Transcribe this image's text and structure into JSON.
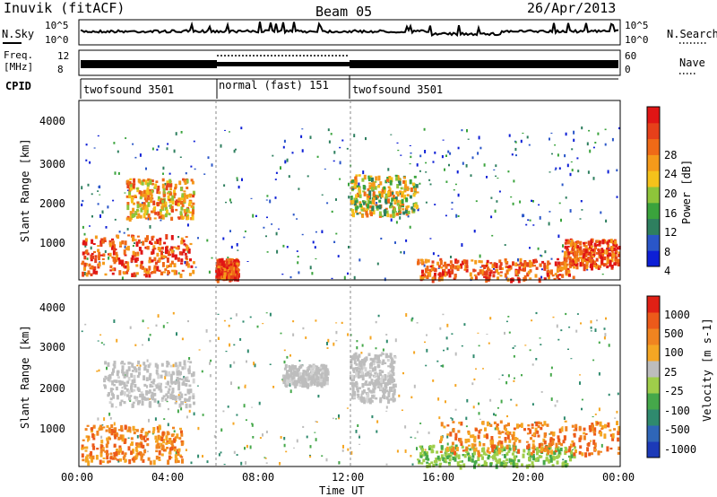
{
  "header": {
    "station": "Inuvik (fitACF)",
    "beam": "Beam 05",
    "date": "26/Apr/2013"
  },
  "status_panels": {
    "nsky": {
      "label": "N.Sky",
      "ticks": [
        "10^5",
        "10^0"
      ]
    },
    "nsearch": {
      "label": "N.Search",
      "ticks": [
        "10^5",
        "10^0"
      ]
    },
    "freq": {
      "label_line1": "Freq.",
      "label_line2": "[MHz]",
      "ticks": [
        "12",
        "8"
      ]
    },
    "nave": {
      "label": "Nave",
      "ticks": [
        "60",
        "0"
      ]
    },
    "cpid": {
      "label": "CPID",
      "segments": [
        {
          "name": "twofsound 3501",
          "start_h": 0,
          "end_h": 6
        },
        {
          "name": "normal (fast) 151",
          "start_h": 6,
          "end_h": 12
        },
        {
          "name": "twofsound 3501",
          "start_h": 12,
          "end_h": 24
        }
      ]
    }
  },
  "chart_data": [
    {
      "type": "heatmap",
      "title": "Power",
      "xlabel": "",
      "ylabel": "Slant Range [km]",
      "ylim": [
        200,
        4600
      ],
      "xlim_h": [
        0,
        24
      ],
      "yticks": [
        "4000",
        "3000",
        "2000",
        "1000"
      ],
      "colorbar": {
        "label": "Power [dB]",
        "ticks": [
          "28",
          "24",
          "20",
          "16",
          "12",
          "8",
          "4"
        ],
        "colors": [
          "#0d1fd6",
          "#2a56c8",
          "#2e7f5f",
          "#3aa33c",
          "#8ec43a",
          "#f5c21b",
          "#f59a1a",
          "#ef6a17",
          "#e6401a",
          "#e01515"
        ]
      },
      "dominant_regions": [
        {
          "time_h": [
            0,
            5
          ],
          "range_km": [
            300,
            1300
          ],
          "level": "high"
        },
        {
          "time_h": [
            2,
            5
          ],
          "range_km": [
            1700,
            2700
          ],
          "level": "medium-high"
        },
        {
          "time_h": [
            6,
            7
          ],
          "range_km": [
            200,
            700
          ],
          "level": "high"
        },
        {
          "time_h": [
            12,
            15
          ],
          "range_km": [
            1800,
            2800
          ],
          "level": "medium"
        },
        {
          "time_h": [
            15,
            22
          ],
          "range_km": [
            200,
            700
          ],
          "level": "high"
        },
        {
          "time_h": [
            21.5,
            24
          ],
          "range_km": [
            500,
            1200
          ],
          "level": "high"
        }
      ]
    },
    {
      "type": "heatmap",
      "title": "Velocity",
      "xlabel": "Time UT",
      "ylabel": "Slant Range [km]",
      "ylim": [
        200,
        4600
      ],
      "xlim_h": [
        0,
        24
      ],
      "yticks": [
        "4000",
        "3000",
        "2000",
        "1000"
      ],
      "xticks": [
        "00:00",
        "04:00",
        "08:00",
        "12:00",
        "16:00",
        "20:00",
        "00:00"
      ],
      "colorbar": {
        "label": "Velocity [m s-1]",
        "ticks": [
          "1000",
          "500",
          "100",
          "25",
          "-25",
          "-100",
          "-500",
          "-1000"
        ],
        "colors": [
          "#1c3ab8",
          "#2f66b8",
          "#2f8a6e",
          "#45a84a",
          "#9fce4a",
          "#bdbdbd",
          "#f5a623",
          "#f08420",
          "#ec5a1a",
          "#e02015"
        ]
      },
      "dominant_regions": [
        {
          "time_h": [
            0,
            4.5
          ],
          "range_km": [
            300,
            1200
          ],
          "level": "-100 to -500"
        },
        {
          "time_h": [
            1,
            5
          ],
          "range_km": [
            1700,
            2800
          ],
          "level": "-25 to 25"
        },
        {
          "time_h": [
            9,
            11
          ],
          "range_km": [
            2200,
            2700
          ],
          "level": "-25 to 25"
        },
        {
          "time_h": [
            12,
            14
          ],
          "range_km": [
            1800,
            3000
          ],
          "level": "-25 to 25"
        },
        {
          "time_h": [
            15,
            22
          ],
          "range_km": [
            200,
            700
          ],
          "level": "25 to 100"
        },
        {
          "time_h": [
            16,
            24
          ],
          "range_km": [
            500,
            1300
          ],
          "level": "-100 to -500"
        }
      ]
    }
  ]
}
